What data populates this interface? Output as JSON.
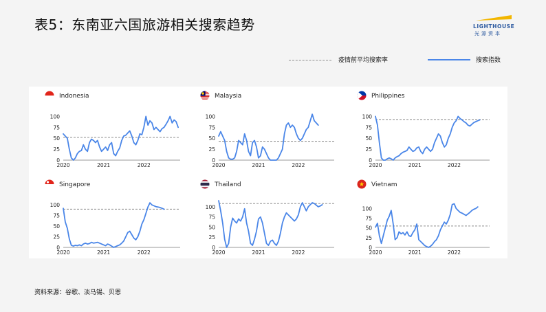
{
  "header": {
    "title": "表5：东南亚六国旅游相关搜索趋势",
    "logo_text": "LIGHTHOUSE",
    "logo_sub": "光源资本"
  },
  "legend": {
    "dashed_label": "疫情前平均搜索率",
    "solid_label": "搜索指数"
  },
  "footer": {
    "source": "资料来源：谷歌、淡马锡、贝恩"
  },
  "colors": {
    "line": "#4a86e8",
    "dashed": "#8a8a8a",
    "logo": "#2d5aa0",
    "logo_accent": "#f2b600"
  },
  "chart_data": [
    {
      "type": "line",
      "country": "Indonesia",
      "flag": "indonesia-flag",
      "yticks": [
        0,
        25,
        50,
        75,
        100
      ],
      "ylim": [
        0,
        110
      ],
      "xticks": [
        "2020",
        "2021",
        "2022"
      ],
      "xlim": [
        2020,
        2022.9
      ],
      "baseline": 52,
      "x": [
        2020.0,
        2020.05,
        2020.1,
        2020.15,
        2020.2,
        2020.25,
        2020.3,
        2020.35,
        2020.4,
        2020.45,
        2020.5,
        2020.55,
        2020.6,
        2020.65,
        2020.7,
        2020.75,
        2020.8,
        2020.85,
        2020.9,
        2020.95,
        2021.0,
        2021.05,
        2021.1,
        2021.15,
        2021.2,
        2021.25,
        2021.3,
        2021.35,
        2021.4,
        2021.45,
        2021.5,
        2021.55,
        2021.6,
        2021.65,
        2021.7,
        2021.75,
        2021.8,
        2021.85,
        2021.9,
        2021.95,
        2022.0,
        2022.05,
        2022.1,
        2022.15,
        2022.2,
        2022.25,
        2022.3,
        2022.35,
        2022.4,
        2022.45,
        2022.5,
        2022.55,
        2022.6,
        2022.65,
        2022.7,
        2022.75,
        2022.8,
        2022.85
      ],
      "y": [
        60,
        55,
        50,
        25,
        5,
        0,
        5,
        15,
        20,
        22,
        35,
        25,
        20,
        40,
        48,
        45,
        40,
        45,
        30,
        20,
        25,
        30,
        22,
        35,
        40,
        15,
        10,
        20,
        28,
        45,
        55,
        57,
        62,
        67,
        55,
        40,
        35,
        45,
        60,
        58,
        75,
        100,
        80,
        90,
        85,
        70,
        75,
        70,
        65,
        72,
        75,
        82,
        90,
        100,
        85,
        92,
        88,
        75
      ]
    },
    {
      "type": "line",
      "country": "Malaysia",
      "flag": "malaysia-flag",
      "yticks": [
        0,
        25,
        50,
        75,
        100
      ],
      "ylim": [
        0,
        110
      ],
      "xticks": [
        "2020",
        "2021",
        "2022"
      ],
      "xlim": [
        2020,
        2022.9
      ],
      "baseline": 43,
      "x": [
        2020.0,
        2020.05,
        2020.1,
        2020.15,
        2020.2,
        2020.25,
        2020.3,
        2020.35,
        2020.4,
        2020.45,
        2020.5,
        2020.55,
        2020.6,
        2020.65,
        2020.7,
        2020.75,
        2020.8,
        2020.85,
        2020.9,
        2020.95,
        2021.0,
        2021.05,
        2021.1,
        2021.15,
        2021.2,
        2021.25,
        2021.3,
        2021.35,
        2021.4,
        2021.45,
        2021.5,
        2021.55,
        2021.6,
        2021.65,
        2021.7,
        2021.75,
        2021.8,
        2021.85,
        2021.9,
        2021.95,
        2022.0,
        2022.05,
        2022.1,
        2022.15,
        2022.2,
        2022.25,
        2022.3,
        2022.35,
        2022.4,
        2022.45,
        2022.5
      ],
      "y": [
        55,
        65,
        55,
        45,
        20,
        5,
        2,
        2,
        5,
        20,
        45,
        40,
        35,
        60,
        45,
        20,
        10,
        40,
        45,
        30,
        5,
        10,
        30,
        25,
        15,
        5,
        0,
        0,
        0,
        0,
        5,
        15,
        25,
        60,
        80,
        85,
        75,
        80,
        75,
        60,
        50,
        45,
        50,
        60,
        70,
        75,
        90,
        105,
        90,
        85,
        80
      ]
    },
    {
      "type": "line",
      "country": "Philippines",
      "flag": "philippines-flag",
      "yticks": [
        0,
        25,
        50,
        75,
        100
      ],
      "ylim": [
        0,
        110
      ],
      "xticks": [
        "2020",
        "2021",
        "2022"
      ],
      "xlim": [
        2020,
        2022.9
      ],
      "baseline": 93,
      "x": [
        2020.0,
        2020.05,
        2020.1,
        2020.15,
        2020.2,
        2020.25,
        2020.3,
        2020.35,
        2020.4,
        2020.45,
        2020.5,
        2020.55,
        2020.6,
        2020.65,
        2020.7,
        2020.75,
        2020.8,
        2020.85,
        2020.9,
        2020.95,
        2021.0,
        2021.05,
        2021.1,
        2021.15,
        2021.2,
        2021.25,
        2021.3,
        2021.35,
        2021.4,
        2021.45,
        2021.5,
        2021.55,
        2021.6,
        2021.65,
        2021.7,
        2021.75,
        2021.8,
        2021.85,
        2021.9,
        2021.95,
        2022.0,
        2022.05,
        2022.1,
        2022.15,
        2022.2,
        2022.25,
        2022.3,
        2022.35,
        2022.4,
        2022.45,
        2022.5,
        2022.55,
        2022.6,
        2022.65
      ],
      "y": [
        100,
        80,
        40,
        5,
        0,
        0,
        3,
        5,
        3,
        0,
        5,
        8,
        10,
        15,
        18,
        20,
        22,
        30,
        25,
        20,
        22,
        28,
        30,
        20,
        15,
        25,
        30,
        25,
        20,
        25,
        40,
        50,
        60,
        55,
        40,
        30,
        35,
        50,
        60,
        75,
        85,
        90,
        100,
        95,
        92,
        88,
        85,
        80,
        78,
        82,
        86,
        88,
        90,
        92
      ]
    },
    {
      "type": "line",
      "country": "Singapore",
      "flag": "singapore-flag",
      "yticks": [
        0,
        25,
        50,
        75,
        100
      ],
      "ylim": [
        0,
        110
      ],
      "xticks": [
        "2020",
        "2021",
        "2022"
      ],
      "xlim": [
        2020,
        2022.9
      ],
      "baseline": 90,
      "x": [
        2020.0,
        2020.05,
        2020.1,
        2020.15,
        2020.2,
        2020.25,
        2020.3,
        2020.35,
        2020.4,
        2020.45,
        2020.5,
        2020.55,
        2020.6,
        2020.65,
        2020.7,
        2020.75,
        2020.8,
        2020.85,
        2020.9,
        2020.95,
        2021.0,
        2021.05,
        2021.1,
        2021.15,
        2021.2,
        2021.25,
        2021.3,
        2021.35,
        2021.4,
        2021.45,
        2021.5,
        2021.55,
        2021.6,
        2021.65,
        2021.7,
        2021.75,
        2021.8,
        2021.85,
        2021.9,
        2021.95,
        2022.0,
        2022.05,
        2022.1,
        2022.15,
        2022.2,
        2022.25,
        2022.3,
        2022.35,
        2022.4,
        2022.45,
        2022.5
      ],
      "y": [
        92,
        60,
        45,
        20,
        5,
        3,
        5,
        4,
        6,
        4,
        8,
        10,
        8,
        9,
        12,
        10,
        11,
        12,
        10,
        8,
        6,
        4,
        8,
        6,
        3,
        0,
        2,
        4,
        6,
        10,
        15,
        25,
        35,
        38,
        30,
        22,
        18,
        25,
        38,
        55,
        65,
        80,
        95,
        105,
        100,
        98,
        96,
        95,
        94,
        92,
        90
      ]
    },
    {
      "type": "line",
      "country": "Thailand",
      "flag": "thailand-flag",
      "yticks": [
        0,
        25,
        50,
        75,
        100
      ],
      "ylim": [
        0,
        115
      ],
      "xticks": [
        "2020",
        "2021",
        "2022"
      ],
      "xlim": [
        2020,
        2022.9
      ],
      "baseline": 108,
      "x": [
        2020.0,
        2020.05,
        2020.1,
        2020.15,
        2020.2,
        2020.25,
        2020.3,
        2020.35,
        2020.4,
        2020.45,
        2020.5,
        2020.55,
        2020.6,
        2020.65,
        2020.7,
        2020.75,
        2020.8,
        2020.85,
        2020.9,
        2020.95,
        2021.0,
        2021.05,
        2021.1,
        2021.15,
        2021.2,
        2021.25,
        2021.3,
        2021.35,
        2021.4,
        2021.45,
        2021.5,
        2021.55,
        2021.6,
        2021.65,
        2021.7,
        2021.75,
        2021.8,
        2021.85,
        2021.9,
        2021.95,
        2022.0,
        2022.05,
        2022.1,
        2022.15,
        2022.2,
        2022.25,
        2022.3,
        2022.35,
        2022.4,
        2022.45,
        2022.5,
        2022.55,
        2022.6
      ],
      "y": [
        115,
        90,
        60,
        20,
        0,
        10,
        50,
        72,
        65,
        60,
        70,
        65,
        75,
        95,
        60,
        40,
        10,
        5,
        20,
        40,
        70,
        75,
        60,
        35,
        10,
        5,
        15,
        18,
        10,
        5,
        15,
        35,
        60,
        75,
        85,
        80,
        75,
        70,
        65,
        70,
        80,
        100,
        110,
        100,
        90,
        100,
        105,
        110,
        108,
        104,
        100,
        102,
        105
      ]
    },
    {
      "type": "line",
      "country": "Vietnam",
      "flag": "vietnam-flag",
      "yticks": [
        0,
        25,
        50,
        75,
        100
      ],
      "ylim": [
        0,
        120
      ],
      "xticks": [
        "2020",
        "2021",
        "2022"
      ],
      "xlim": [
        2020,
        2022.9
      ],
      "baseline": 55,
      "x": [
        2020.0,
        2020.05,
        2020.1,
        2020.15,
        2020.2,
        2020.25,
        2020.3,
        2020.35,
        2020.4,
        2020.45,
        2020.5,
        2020.55,
        2020.6,
        2020.65,
        2020.7,
        2020.75,
        2020.8,
        2020.85,
        2020.9,
        2020.95,
        2021.0,
        2021.05,
        2021.1,
        2021.15,
        2021.2,
        2021.25,
        2021.3,
        2021.35,
        2021.4,
        2021.45,
        2021.5,
        2021.55,
        2021.6,
        2021.65,
        2021.7,
        2021.75,
        2021.8,
        2021.85,
        2021.9,
        2021.95,
        2022.0,
        2022.05,
        2022.1,
        2022.15,
        2022.2,
        2022.25,
        2022.3,
        2022.35,
        2022.4,
        2022.45,
        2022.5,
        2022.55,
        2022.6
      ],
      "y": [
        52,
        62,
        30,
        10,
        30,
        50,
        70,
        80,
        95,
        60,
        20,
        25,
        40,
        35,
        38,
        32,
        40,
        30,
        28,
        38,
        45,
        60,
        20,
        15,
        10,
        5,
        2,
        0,
        3,
        8,
        15,
        20,
        30,
        45,
        55,
        65,
        60,
        70,
        85,
        110,
        112,
        100,
        95,
        90,
        88,
        85,
        82,
        86,
        90,
        95,
        98,
        100,
        104
      ]
    }
  ]
}
